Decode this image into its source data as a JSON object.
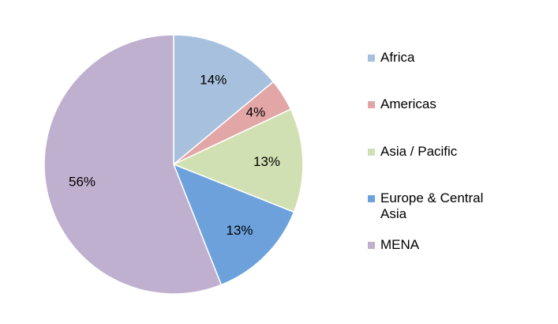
{
  "chart_data": {
    "type": "pie",
    "title": "",
    "slices": [
      {
        "label": "Africa",
        "value": 14,
        "display": "14%",
        "color": "#a7c0de"
      },
      {
        "label": "Americas",
        "value": 4,
        "display": "4%",
        "color": "#e1a6a5"
      },
      {
        "label": "Asia / Pacific",
        "value": 13,
        "display": "13%",
        "color": "#d1e0b2"
      },
      {
        "label": "Europe & Central Asia",
        "value": 13,
        "display": "13%",
        "color": "#6ca1dc"
      },
      {
        "label": "MENA",
        "value": 56,
        "display": "56%",
        "color": "#c0b0d0"
      }
    ],
    "start_angle_deg": 0,
    "direction": "clockwise",
    "legend_position": "right"
  }
}
